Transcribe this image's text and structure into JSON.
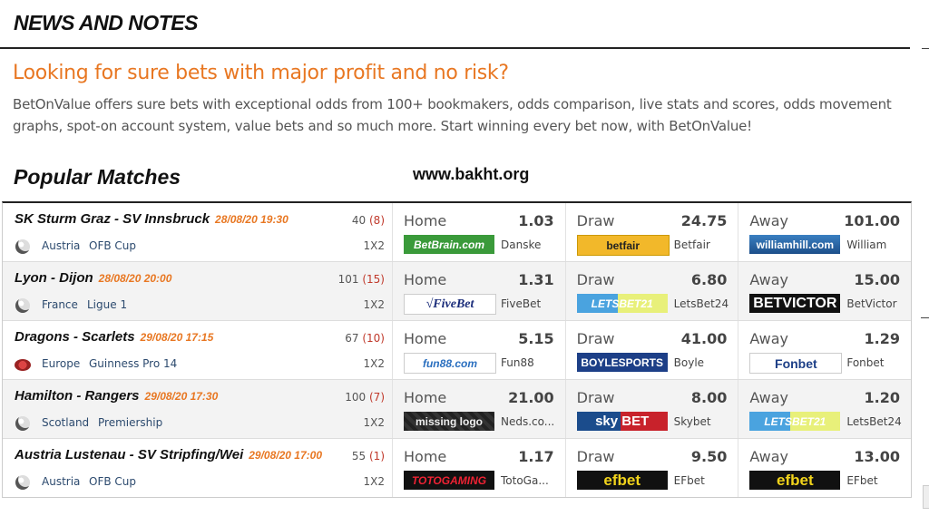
{
  "news": {
    "title": "NEWS AND NOTES",
    "headline": "Looking for sure bets with major profit and no risk?",
    "description": "BetOnValue offers sure bets with exceptional odds from 100+ bookmakers, odds comparison, live stats and scores, odds movement graphs, spot-on account system, value bets and so much more. Start winning every bet now, with BetOnValue!"
  },
  "popular": {
    "title": "Popular Matches",
    "watermark": "www.bakht.org"
  },
  "colors": {
    "accent": "#e87722",
    "subcount": "#c0392b",
    "link": "#2c4a6e"
  },
  "matches": [
    {
      "name": "SK Sturm Graz - SV Innsbruck",
      "time": "28/08/20 19:30",
      "count": "40",
      "sub": "(8)",
      "sport": "soccer-ball-icon",
      "country": "Austria",
      "league": "OFB Cup",
      "market": "1X2",
      "odds": [
        {
          "label": "Home",
          "value": "1.03",
          "logo": "BetBrain.com",
          "bookmaker": "Danske",
          "style": "betbrain"
        },
        {
          "label": "Draw",
          "value": "24.75",
          "logo": "betfair",
          "bookmaker": "Betfair",
          "style": "betfair"
        },
        {
          "label": "Away",
          "value": "101.00",
          "logo": "williamhill.com",
          "bookmaker": "William",
          "style": "william"
        }
      ]
    },
    {
      "name": "Lyon - Dijon",
      "time": "28/08/20 20:00",
      "count": "101",
      "sub": "(15)",
      "sport": "soccer-ball-icon",
      "country": "France",
      "league": "Ligue 1",
      "market": "1X2",
      "odds": [
        {
          "label": "Home",
          "value": "1.31",
          "logo": "√FiveBet",
          "bookmaker": "FiveBet",
          "style": "fivebet"
        },
        {
          "label": "Draw",
          "value": "6.80",
          "logo": "LETSBET21",
          "bookmaker": "LetsBet24",
          "style": "letsbet"
        },
        {
          "label": "Away",
          "value": "15.00",
          "logo": "BETVICTOR",
          "bookmaker": "BetVictor",
          "style": "betvictor"
        }
      ]
    },
    {
      "name": "Dragons - Scarlets",
      "time": "29/08/20 17:15",
      "count": "67",
      "sub": "(10)",
      "sport": "rugby-ball-icon",
      "country": "Europe",
      "league": "Guinness Pro 14",
      "market": "1X2",
      "odds": [
        {
          "label": "Home",
          "value": "5.15",
          "logo": "fun88.com",
          "bookmaker": "Fun88",
          "style": "fun88"
        },
        {
          "label": "Draw",
          "value": "41.00",
          "logo": "BOYLESPORTS",
          "bookmaker": "Boyle",
          "style": "boyle"
        },
        {
          "label": "Away",
          "value": "1.29",
          "logo": "Fonbet",
          "bookmaker": "Fonbet",
          "style": "fonbet"
        }
      ]
    },
    {
      "name": "Hamilton - Rangers",
      "time": "29/08/20 17:30",
      "count": "100",
      "sub": "(7)",
      "sport": "soccer-ball-icon",
      "country": "Scotland",
      "league": "Premiership",
      "market": "1X2",
      "odds": [
        {
          "label": "Home",
          "value": "21.00",
          "logo": "missing logo",
          "bookmaker": "Neds.co...",
          "style": "missing"
        },
        {
          "label": "Draw",
          "value": "8.00",
          "logo": "sky BET",
          "bookmaker": "Skybet",
          "style": "skybet"
        },
        {
          "label": "Away",
          "value": "1.20",
          "logo": "LETSBET21",
          "bookmaker": "LetsBet24",
          "style": "letsbet"
        }
      ]
    },
    {
      "name": "Austria Lustenau - SV Stripfing/Wei",
      "time": "29/08/20 17:00",
      "count": "55",
      "sub": "(1)",
      "sport": "soccer-ball-icon",
      "country": "Austria",
      "league": "OFB Cup",
      "market": "1X2",
      "odds": [
        {
          "label": "Home",
          "value": "1.17",
          "logo": "TOTOGAMING",
          "bookmaker": "TotoGa...",
          "style": "toto"
        },
        {
          "label": "Draw",
          "value": "9.50",
          "logo": "efbet",
          "bookmaker": "EFbet",
          "style": "efbet"
        },
        {
          "label": "Away",
          "value": "13.00",
          "logo": "efbet",
          "bookmaker": "EFbet",
          "style": "efbet"
        }
      ]
    }
  ]
}
